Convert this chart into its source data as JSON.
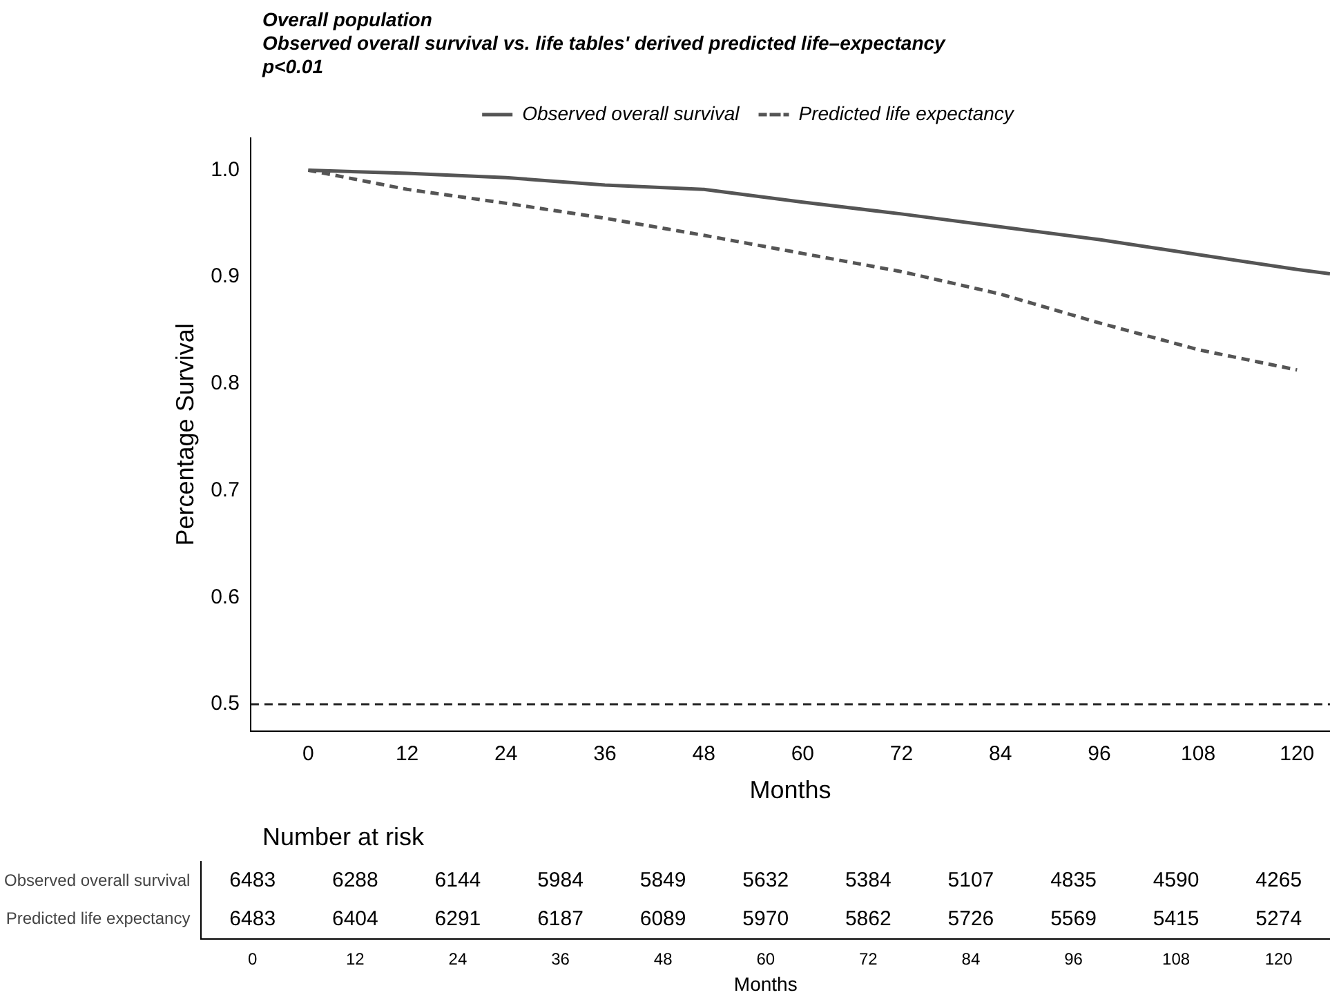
{
  "chart_data": [
    {
      "type": "line",
      "title": "Overall population",
      "subtitle": "Observed overall survival vs. life tables' derived predicted life–expectancy\np<0.01",
      "xlabel": "Months",
      "ylabel": "Percentage Survival",
      "x": [
        0,
        12,
        24,
        36,
        48,
        60,
        72,
        84,
        96,
        108,
        120,
        124
      ],
      "series": [
        {
          "name": "Observed overall survival",
          "color": "#555555",
          "line_style": "solid",
          "values": [
            1.0,
            0.997,
            0.993,
            0.986,
            0.982,
            0.97,
            0.959,
            0.947,
            0.935,
            0.921,
            0.907,
            0.903
          ]
        },
        {
          "name": "Predicted life expectancy",
          "color": "#555555",
          "line_style": "dashed",
          "values": [
            1.0,
            0.982,
            0.969,
            0.955,
            0.939,
            0.922,
            0.905,
            0.884,
            0.857,
            0.832,
            0.813,
            null
          ]
        }
      ],
      "xlim": [
        -7,
        124
      ],
      "xticks": [
        0,
        12,
        24,
        36,
        48,
        60,
        72,
        84,
        96,
        108,
        120
      ],
      "ylim": [
        0.475,
        1.03
      ],
      "yticks": [
        {
          "value": 0.5,
          "label": "0.5"
        },
        {
          "value": 0.6,
          "label": "0.6"
        },
        {
          "value": 0.7,
          "label": "0.7"
        },
        {
          "value": 0.8,
          "label": "0.8"
        },
        {
          "value": 0.9,
          "label": "0.9"
        },
        {
          "value": 1.0,
          "label": "1.0"
        }
      ],
      "ref_lines": [
        {
          "axis": "y",
          "value": 0.5,
          "color": "#222222",
          "line_style": "dashed"
        }
      ],
      "grid": false,
      "legend": "top",
      "marker": "none"
    },
    {
      "type": "heatmap",
      "title": "Number at risk",
      "xlabel": "Months",
      "categories": [
        "0",
        "12",
        "24",
        "36",
        "48",
        "60",
        "72",
        "84",
        "96",
        "108",
        "120"
      ],
      "y_categories": [
        "Observed overall survival",
        "Predicted life expectancy"
      ],
      "cells": [
        [
          6483,
          6288,
          6144,
          5984,
          5849,
          5632,
          5384,
          5107,
          4835,
          4590,
          4265
        ],
        [
          6483,
          6404,
          6291,
          6187,
          6089,
          5970,
          5862,
          5726,
          5569,
          5415,
          5274
        ]
      ],
      "data_labels": true
    }
  ]
}
